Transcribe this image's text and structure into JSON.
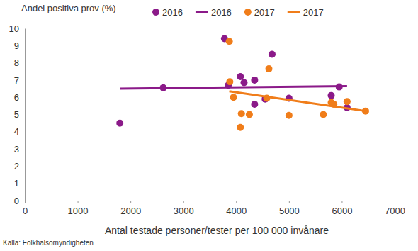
{
  "chart_data": {
    "type": "scatter",
    "y_label": "Andel positiva prov (%)",
    "x_label": "Antal testade personer/tester per 100 000 invånare",
    "source": "Källa: Folkhälsomyndigheten",
    "xlim": [
      0,
      7000
    ],
    "xticks": [
      0,
      1000,
      2000,
      3000,
      4000,
      5000,
      6000,
      7000
    ],
    "ylim": [
      0,
      10
    ],
    "yticks": [
      0,
      1,
      2,
      3,
      4,
      5,
      6,
      7,
      8,
      9,
      10
    ],
    "grid": false,
    "legend": "top",
    "series": [
      {
        "name": "2016",
        "type": "scatter",
        "marker": "circle",
        "color": "#8b1a89",
        "x": [
          1800,
          2620,
          3780,
          3850,
          4080,
          4150,
          4350,
          4350,
          4550,
          4680,
          5000,
          5800,
          5950,
          6100
        ],
        "values": [
          4.5,
          6.55,
          9.4,
          6.7,
          7.2,
          6.85,
          5.6,
          7.0,
          5.9,
          8.5,
          5.95,
          6.1,
          6.6,
          5.4
        ]
      },
      {
        "name": "2016",
        "type": "line",
        "line_style": "solid",
        "color": "#8b1a89",
        "x": [
          1800,
          6100
        ],
        "values": [
          6.5,
          6.65
        ]
      },
      {
        "name": "2017",
        "type": "scatter",
        "marker": "circle",
        "color": "#f07d1a",
        "x": [
          3870,
          3880,
          3950,
          4080,
          4100,
          4250,
          4580,
          4620,
          5000,
          5650,
          5800,
          5850,
          6100,
          6450
        ],
        "values": [
          9.25,
          6.9,
          6.0,
          4.25,
          5.05,
          5.0,
          5.95,
          7.65,
          4.95,
          5.0,
          5.7,
          5.6,
          5.75,
          5.2
        ]
      },
      {
        "name": "2017",
        "type": "line",
        "line_style": "solid",
        "color": "#f07d1a",
        "x": [
          3870,
          6450
        ],
        "values": [
          6.35,
          5.2
        ]
      }
    ]
  }
}
